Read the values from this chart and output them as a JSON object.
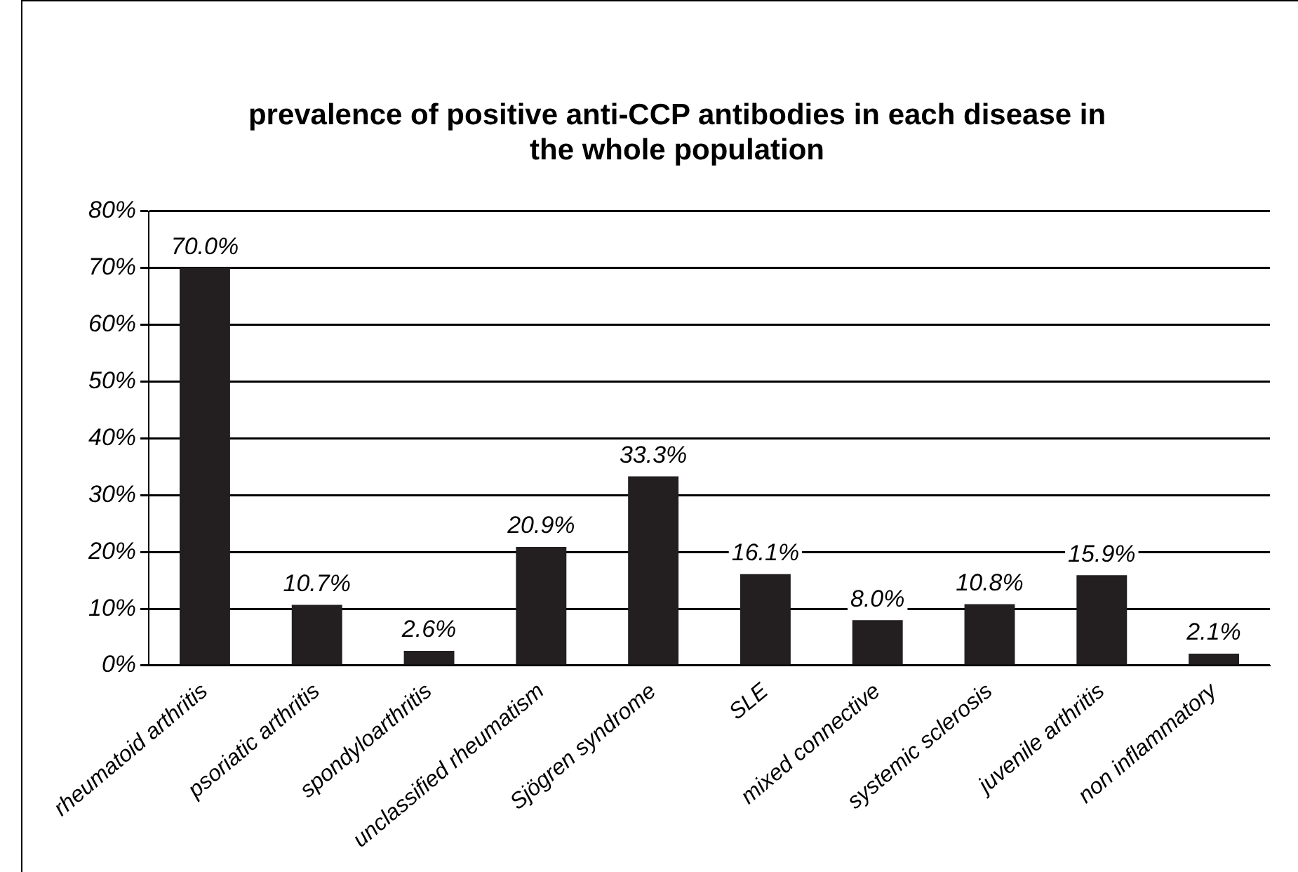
{
  "chart_data": {
    "type": "bar",
    "title": [
      "prevalence of positive anti-CCP antibodies in each disease in",
      "the whole population"
    ],
    "categories": [
      "rheumatoid arthritis",
      "psoriatic arthritis",
      "spondyloarthritis",
      "unclassified rheumatism",
      "Sjögren syndrome",
      "SLE",
      "mixed connective",
      "systemic sclerosis",
      "juvenile arthritis",
      "non inflammatory"
    ],
    "values": [
      70.0,
      10.7,
      2.6,
      20.9,
      33.3,
      16.1,
      8.0,
      10.8,
      15.9,
      2.1
    ],
    "value_labels": [
      "70.0%",
      "10.7%",
      "2.6%",
      "20.9%",
      "33.3%",
      "16.1%",
      "8.0%",
      "10.8%",
      "15.9%",
      "2.1%"
    ],
    "color": "#231f20",
    "ylim": [
      0,
      80
    ],
    "yticks": [
      {
        "value": 0,
        "label": "0%"
      },
      {
        "value": 10,
        "label": "10%"
      },
      {
        "value": 20,
        "label": "20%"
      },
      {
        "value": 30,
        "label": "30%"
      },
      {
        "value": 40,
        "label": "40%"
      },
      {
        "value": 50,
        "label": "50%"
      },
      {
        "value": 60,
        "label": "60%"
      },
      {
        "value": 70,
        "label": "70%"
      },
      {
        "value": 80,
        "label": "80%"
      }
    ],
    "grid": "y",
    "legend": false
  }
}
